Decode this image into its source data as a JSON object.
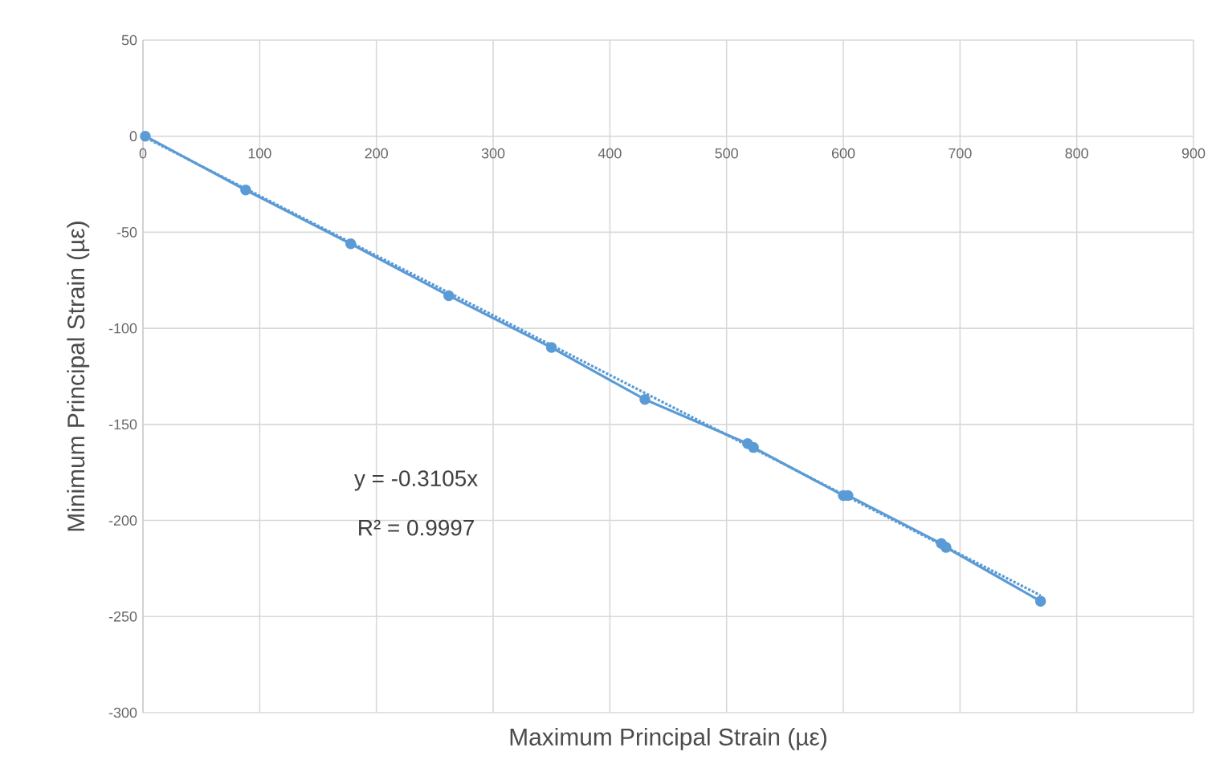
{
  "chart_data": {
    "type": "line",
    "xlabel": "Maximum Principal Strain (µε)",
    "ylabel": "Minimum Principal Strain (µε)",
    "xlim": [
      0,
      900
    ],
    "xticks": [
      0,
      100,
      200,
      300,
      400,
      500,
      600,
      700,
      800,
      900
    ],
    "ylim": [
      -300,
      50
    ],
    "yticks": [
      -300,
      -250,
      -200,
      -150,
      -100,
      -50,
      0,
      50
    ],
    "grid": true,
    "marker": "circle",
    "line_style": "solid",
    "series": [
      {
        "color": "#5b9bd5",
        "x": [
          2,
          88,
          178,
          262,
          350,
          430,
          518,
          523,
          600,
          604,
          684,
          688,
          769
        ],
        "values": [
          0,
          -28,
          -56,
          -83,
          -110,
          -137,
          -160,
          -162,
          -187,
          -187,
          -212,
          -214,
          -242
        ]
      },
      {
        "type": "line",
        "color": "#5b9bd5",
        "marker": "none",
        "line_style": "dotted",
        "x": [
          0,
          769
        ],
        "values": [
          0,
          -239
        ]
      }
    ],
    "annotations": [
      "y = -0.3105x",
      "R² = 0.9997"
    ]
  }
}
